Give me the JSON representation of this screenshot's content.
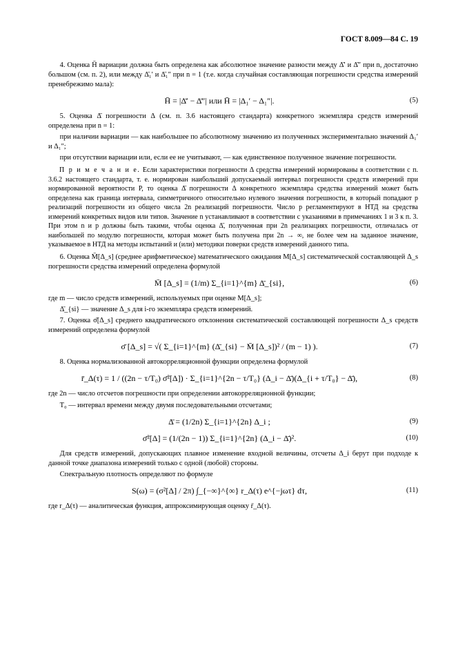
{
  "header": "ГОСТ 8.009—84 С. 19",
  "p4": "4. Оценка H̄ вариации должна быть определена как абсолютное значение разности между Δ̄′ и Δ̄″ при n, достаточно большом (см. п. 2), или между Δ̄₁′ и Δ̄₁″ при n = 1 (т.е. когда случайная составляющая погрешности средства измерений пренебрежимо мала):",
  "eq5": "H̄ = |Δ̄′ − Δ̄″|  или  H̄ = |Δ₁′ − Δ₁″|.",
  "eq5_num": "(5)",
  "p5": "5. Оценка Δ̄ погрешности Δ (см. п. 3.6 настоящего стандарта) конкретного экземпляра средств измерений определена при n = 1:",
  "p5a": "при наличии вариации — как наибольшее по абсолютному значению из полученных экспериментально значений Δ₁′ и Δ₁″;",
  "p5b": "при отсутствии вариации или, если ее не учитывают, — как единственное полученное значение погрешности.",
  "note_label": "П р и м е ч а н и е.",
  "note_text": "Если характеристики погрешности Δ средства измерений нормированы в соответствии с п. 3.6.2 настоящего стандарта, т. е. нормирован наибольший допускаемый интервал погрешности средств измерений при нормированной вероятности P, то оценка Δ̄ погрешности Δ конкретного экземпляра средства измерений может быть определена как граница интервала, симметричного относительно нулевого значения погрешности, в который попадают p реализаций погрешности из общего числа 2n реализаций погрешности. Число p регламентируют в НТД на средства измерений конкретных видов или типов. Значение n устанавливают в соответствии с указаниями в примечаниях 1 и 3 к п. 3. При этом n и p должны быть такими, чтобы оценка Δ̄, полученная при 2n реализациях погрешности, отличалась от наибольшей по модулю погрешности, которая может быть получена при 2n → ∞, не более чем на заданное значение, указываемое в НТД на методы испытаний и (или) методики поверки средств измерений данного типа.",
  "p6": "6. Оценка M̄[Δ_s] (среднее арифметическое) математического ожидания M[Δ_s] систематической составляющей Δ_s погрешности средства измерений определена формулой",
  "eq6": "M̄ [Δ_s] = (1/m) Σ_{i=1}^{m} Δ̄_{si},",
  "eq6_num": "(6)",
  "p6a": "где m — число средств измерений, используемых при оценке M[Δ_s];",
  "p6b": "Δ̄_{si} — значение Δ_s для i-го экземпляра средств измерений.",
  "p7": "7. Оценка σ̄[Δ_s] среднего квадратического отклонения систематической составляющей погрешности Δ_s средств измерений определена формулой",
  "eq7": "σ̄ [Δ_s] = √( Σ_{i=1}^{m} (Δ̄_{si} − M̄ [Δ_s])² / (m − 1) ).",
  "eq7_num": "(7)",
  "p8": "8. Оценка нормализованной автокорреляционной функции определена формулой",
  "eq8": "r̄_Δ(τ) = 1 / ((2n − τ/T₀) σ̄²[Δ]) · Σ_{i=1}^{2n − τ/T₀} (Δ_i − Δ̄)(Δ_{i + τ/T₀} − Δ̄),",
  "eq8_num": "(8)",
  "p8a": "где 2n — число отсчетов погрешности при определении автокорреляционной функции;",
  "p8b": "T₀ — интервал времени между двумя последовательными отсчетами;",
  "eq9": "Δ̄ = (1/2n) Σ_{i=1}^{2n} Δ_i ;",
  "eq9_num": "(9)",
  "eq10": "σ̄²[Δ] = (1/(2n − 1)) Σ_{i=1}^{2n} (Δ_i − Δ̄)².",
  "eq10_num": "(10)",
  "p9": "Для средств измерений, допускающих плавное изменение входной величины, отсчеты Δ_i берут при подходе к данной точке диапазона измерений только с одной (любой) стороны.",
  "p10": "Спектральную плотность определяют по формуле",
  "eq11": "S(ω) = (σ²[Δ] / 2π) ∫_{−∞}^{∞} r_Δ(τ) e^{−jωτ} dτ,",
  "eq11_num": "(11)",
  "p11": "где r_Δ(τ) — аналитическая функция, аппроксимирующая оценку r̄_Δ(τ)."
}
